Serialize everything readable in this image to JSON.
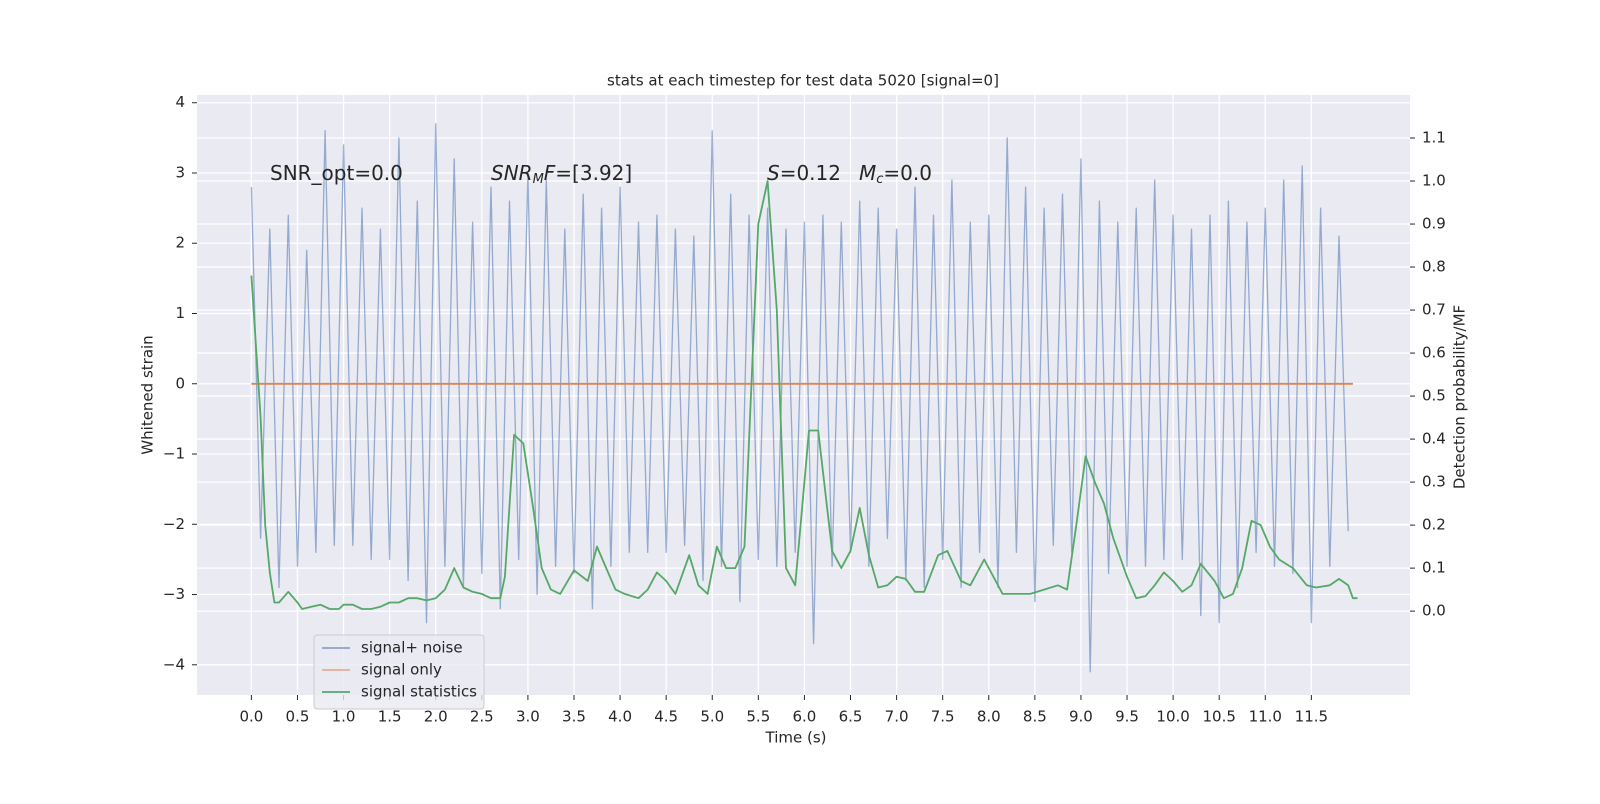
{
  "chart_data": {
    "type": "line",
    "title": "stats at each timestep for test data 5020 [signal=0]",
    "xlabel": "Time (s)",
    "ylabel": "Whitened strain",
    "y2label": "Detection probability/MF",
    "xlim": [
      -0.59,
      12.57
    ],
    "ylim": [
      -4.43,
      4.11
    ],
    "y2lim": [
      -0.195,
      1.2
    ],
    "xticks": [
      {
        "value": 0,
        "label": "0.0"
      },
      0.5,
      {
        "value": 1,
        "label": "1.0"
      },
      1.5,
      {
        "value": 2,
        "label": "2.0"
      },
      2.5,
      {
        "value": 3,
        "label": "3.0"
      },
      3.5,
      {
        "value": 4,
        "label": "4.0"
      },
      4.5,
      {
        "value": 5,
        "label": "5.0"
      },
      5.5,
      {
        "value": 6,
        "label": "6.0"
      },
      6.5,
      {
        "value": 7,
        "label": "7.0"
      },
      7.5,
      {
        "value": 8,
        "label": "8.0"
      },
      8.5,
      {
        "value": 9,
        "label": "9.0"
      },
      9.5,
      {
        "value": 10,
        "label": "10.0"
      },
      10.5,
      {
        "value": 11,
        "label": "11.0"
      },
      11.5
    ],
    "yticks": [
      {
        "value": -4,
        "label": "−4"
      },
      {
        "value": -3,
        "label": "−3"
      },
      {
        "value": -2,
        "label": "−2"
      },
      {
        "value": -1,
        "label": "−1"
      },
      0,
      1,
      2,
      3,
      4
    ],
    "y2ticks": [
      {
        "value": 0,
        "label": "0.0"
      },
      0.1,
      0.2,
      0.3,
      0.4,
      0.5,
      0.6,
      0.7,
      0.8,
      0.9,
      {
        "value": 1,
        "label": "1.0"
      },
      1.1
    ],
    "grid": true,
    "legend": "lower left",
    "annotations": [
      {
        "text": "SNR_opt=0.0"
      },
      {
        "math": "SNR",
        "sub": "M",
        "math2": "F",
        "text": "=[3.92]"
      },
      {
        "math": "S",
        "text": "=0.12"
      },
      {
        "math": "M",
        "sub": "c",
        "text": "=0.0"
      }
    ],
    "series": [
      {
        "name": "signal+ noise",
        "color": "#4c72b0",
        "x": [
          0,
          0.1,
          0.2,
          0.3,
          0.4,
          0.5,
          0.6,
          0.7,
          0.8,
          0.9,
          1,
          1.1,
          1.2,
          1.3,
          1.4,
          1.5,
          1.6,
          1.7,
          1.8,
          1.9,
          2,
          2.1,
          2.2,
          2.3,
          2.4,
          2.5,
          2.6,
          2.7,
          2.8,
          2.9,
          3,
          3.1,
          3.2,
          3.3,
          3.4,
          3.5,
          3.6,
          3.7,
          3.8,
          3.9,
          4,
          4.1,
          4.2,
          4.3,
          4.4,
          4.5,
          4.6,
          4.7,
          4.8,
          4.9,
          5,
          5.1,
          5.2,
          5.3,
          5.4,
          5.5,
          5.6,
          5.7,
          5.8,
          5.9,
          6,
          6.1,
          6.2,
          6.3,
          6.4,
          6.5,
          6.6,
          6.7,
          6.8,
          6.9,
          7,
          7.1,
          7.2,
          7.3,
          7.4,
          7.5,
          7.6,
          7.7,
          7.8,
          7.9,
          8,
          8.1,
          8.2,
          8.3,
          8.4,
          8.5,
          8.6,
          8.7,
          8.8,
          8.9,
          9,
          9.1,
          9.2,
          9.3,
          9.4,
          9.5,
          9.6,
          9.7,
          9.8,
          9.9,
          10,
          10.1,
          10.2,
          10.3,
          10.4,
          10.5,
          10.6,
          10.7,
          10.8,
          10.9,
          11,
          11.1,
          11.2,
          11.3,
          11.4,
          11.5,
          11.6,
          11.7,
          11.8,
          11.9
        ],
        "values": [
          2.8,
          -2.2,
          2.2,
          -2.9,
          2.4,
          -2.6,
          1.9,
          -2.4,
          3.6,
          -2.3,
          3.4,
          -2.3,
          2.5,
          -2.5,
          2.2,
          -2.5,
          3.5,
          -2.8,
          2.6,
          -3.4,
          3.7,
          -2.6,
          3.2,
          -2.9,
          2.3,
          -2.7,
          2.8,
          -3.2,
          2.6,
          -2.5,
          3.0,
          -3.0,
          2.9,
          -2.6,
          2.2,
          -2.7,
          2.7,
          -3.2,
          2.5,
          -2.6,
          2.8,
          -2.4,
          2.3,
          -2.4,
          2.4,
          -2.4,
          2.2,
          -2.3,
          2.1,
          -2.8,
          3.6,
          -2.6,
          2.7,
          -3.1,
          2.4,
          -2.5,
          2.5,
          -2.6,
          2.2,
          -2.4,
          2.3,
          -3.7,
          2.4,
          -2.6,
          2.3,
          -2.4,
          2.6,
          -2.6,
          2.5,
          -2.2,
          2.2,
          -2.8,
          2.8,
          -2.9,
          2.4,
          -2.5,
          2.9,
          -2.9,
          2.3,
          -2.4,
          2.4,
          -2.9,
          3.5,
          -2.4,
          2.8,
          -3.1,
          2.5,
          -2.3,
          2.7,
          -2.4,
          3.2,
          -4.1,
          2.6,
          -2.7,
          2.3,
          -2.6,
          2.5,
          -2.6,
          2.9,
          -2.5,
          2.4,
          -2.5,
          2.2,
          -3.3,
          2.4,
          -3.4,
          2.6,
          -2.9,
          2.3,
          -2.4,
          2.5,
          -2.6,
          2.9,
          -2.7,
          3.1,
          -3.4,
          2.5,
          -2.6,
          2.1,
          -2.1
        ]
      },
      {
        "name": "signal only",
        "color": "#dd8452",
        "x": [
          0,
          11.95
        ],
        "values": [
          0,
          0
        ]
      },
      {
        "name": "signal statistics",
        "color": "#55a868",
        "axis": "y2",
        "x": [
          0,
          0.1,
          0.15,
          0.2,
          0.25,
          0.3,
          0.4,
          0.5,
          0.55,
          0.65,
          0.75,
          0.85,
          0.95,
          1,
          1.1,
          1.2,
          1.3,
          1.4,
          1.5,
          1.6,
          1.7,
          1.8,
          1.9,
          2,
          2.1,
          2.2,
          2.3,
          2.4,
          2.5,
          2.6,
          2.7,
          2.75,
          2.85,
          2.95,
          3.05,
          3.15,
          3.25,
          3.35,
          3.5,
          3.65,
          3.75,
          3.85,
          3.95,
          4.05,
          4.2,
          4.3,
          4.4,
          4.5,
          4.6,
          4.75,
          4.85,
          4.95,
          5.05,
          5.15,
          5.25,
          5.35,
          5.5,
          5.6,
          5.7,
          5.8,
          5.9,
          6.05,
          6.15,
          6.3,
          6.4,
          6.5,
          6.6,
          6.7,
          6.8,
          6.9,
          7,
          7.1,
          7.2,
          7.3,
          7.45,
          7.55,
          7.7,
          7.8,
          7.95,
          8.05,
          8.15,
          8.3,
          8.45,
          8.6,
          8.75,
          8.85,
          8.95,
          9.05,
          9.15,
          9.25,
          9.35,
          9.5,
          9.6,
          9.7,
          9.8,
          9.9,
          10,
          10.1,
          10.2,
          10.3,
          10.45,
          10.55,
          10.65,
          10.75,
          10.85,
          10.95,
          11.05,
          11.15,
          11.3,
          11.45,
          11.55,
          11.7,
          11.8,
          11.9,
          11.95,
          12
        ],
        "values": [
          0.78,
          0.45,
          0.2,
          0.09,
          0.02,
          0.02,
          0.045,
          0.02,
          0.005,
          0.01,
          0.015,
          0.005,
          0.005,
          0.015,
          0.015,
          0.005,
          0.005,
          0.01,
          0.02,
          0.02,
          0.03,
          0.03,
          0.025,
          0.03,
          0.05,
          0.1,
          0.055,
          0.045,
          0.04,
          0.03,
          0.03,
          0.08,
          0.41,
          0.39,
          0.25,
          0.1,
          0.05,
          0.04,
          0.095,
          0.07,
          0.15,
          0.1,
          0.05,
          0.04,
          0.03,
          0.05,
          0.09,
          0.07,
          0.04,
          0.13,
          0.06,
          0.04,
          0.15,
          0.1,
          0.1,
          0.15,
          0.9,
          1.0,
          0.7,
          0.1,
          0.06,
          0.42,
          0.42,
          0.14,
          0.1,
          0.14,
          0.24,
          0.13,
          0.055,
          0.06,
          0.08,
          0.075,
          0.045,
          0.045,
          0.13,
          0.14,
          0.07,
          0.06,
          0.12,
          0.08,
          0.04,
          0.04,
          0.04,
          0.05,
          0.06,
          0.05,
          0.2,
          0.36,
          0.3,
          0.25,
          0.17,
          0.08,
          0.03,
          0.035,
          0.06,
          0.09,
          0.07,
          0.045,
          0.06,
          0.11,
          0.07,
          0.03,
          0.04,
          0.1,
          0.21,
          0.2,
          0.15,
          0.12,
          0.1,
          0.06,
          0.055,
          0.06,
          0.075,
          0.06,
          0.03,
          0.03
        ]
      }
    ]
  }
}
